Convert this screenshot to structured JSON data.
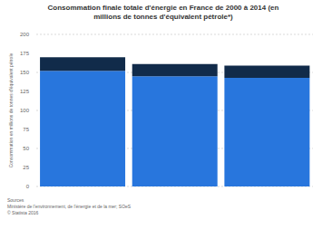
{
  "chart_data": {
    "type": "bar",
    "title": "Consommation finale totale d'énergie en France de 2000 à 2014 (en millions de tonnes d'équivalent pétrole*)",
    "ylabel": "Consommation en millions de tonnes d'équivalent pétrole",
    "source": [
      "Sources",
      "Ministère de l'environnement, de l'énergie et de la mer; SOeS",
      "© Statista 2016"
    ],
    "categories": [
      null,
      null,
      null
    ],
    "series": [
      {
        "color": "#2876dd",
        "values": [
          152,
          145,
          143
        ]
      },
      {
        "color": "#112b4a",
        "values": [
          18,
          16,
          16
        ]
      }
    ],
    "stacked": true,
    "ylim": [
      0,
      200
    ],
    "yticks": [
      0,
      25,
      50,
      75,
      100,
      125,
      150,
      175,
      200
    ],
    "grid": true,
    "tick_labels": "y"
  }
}
